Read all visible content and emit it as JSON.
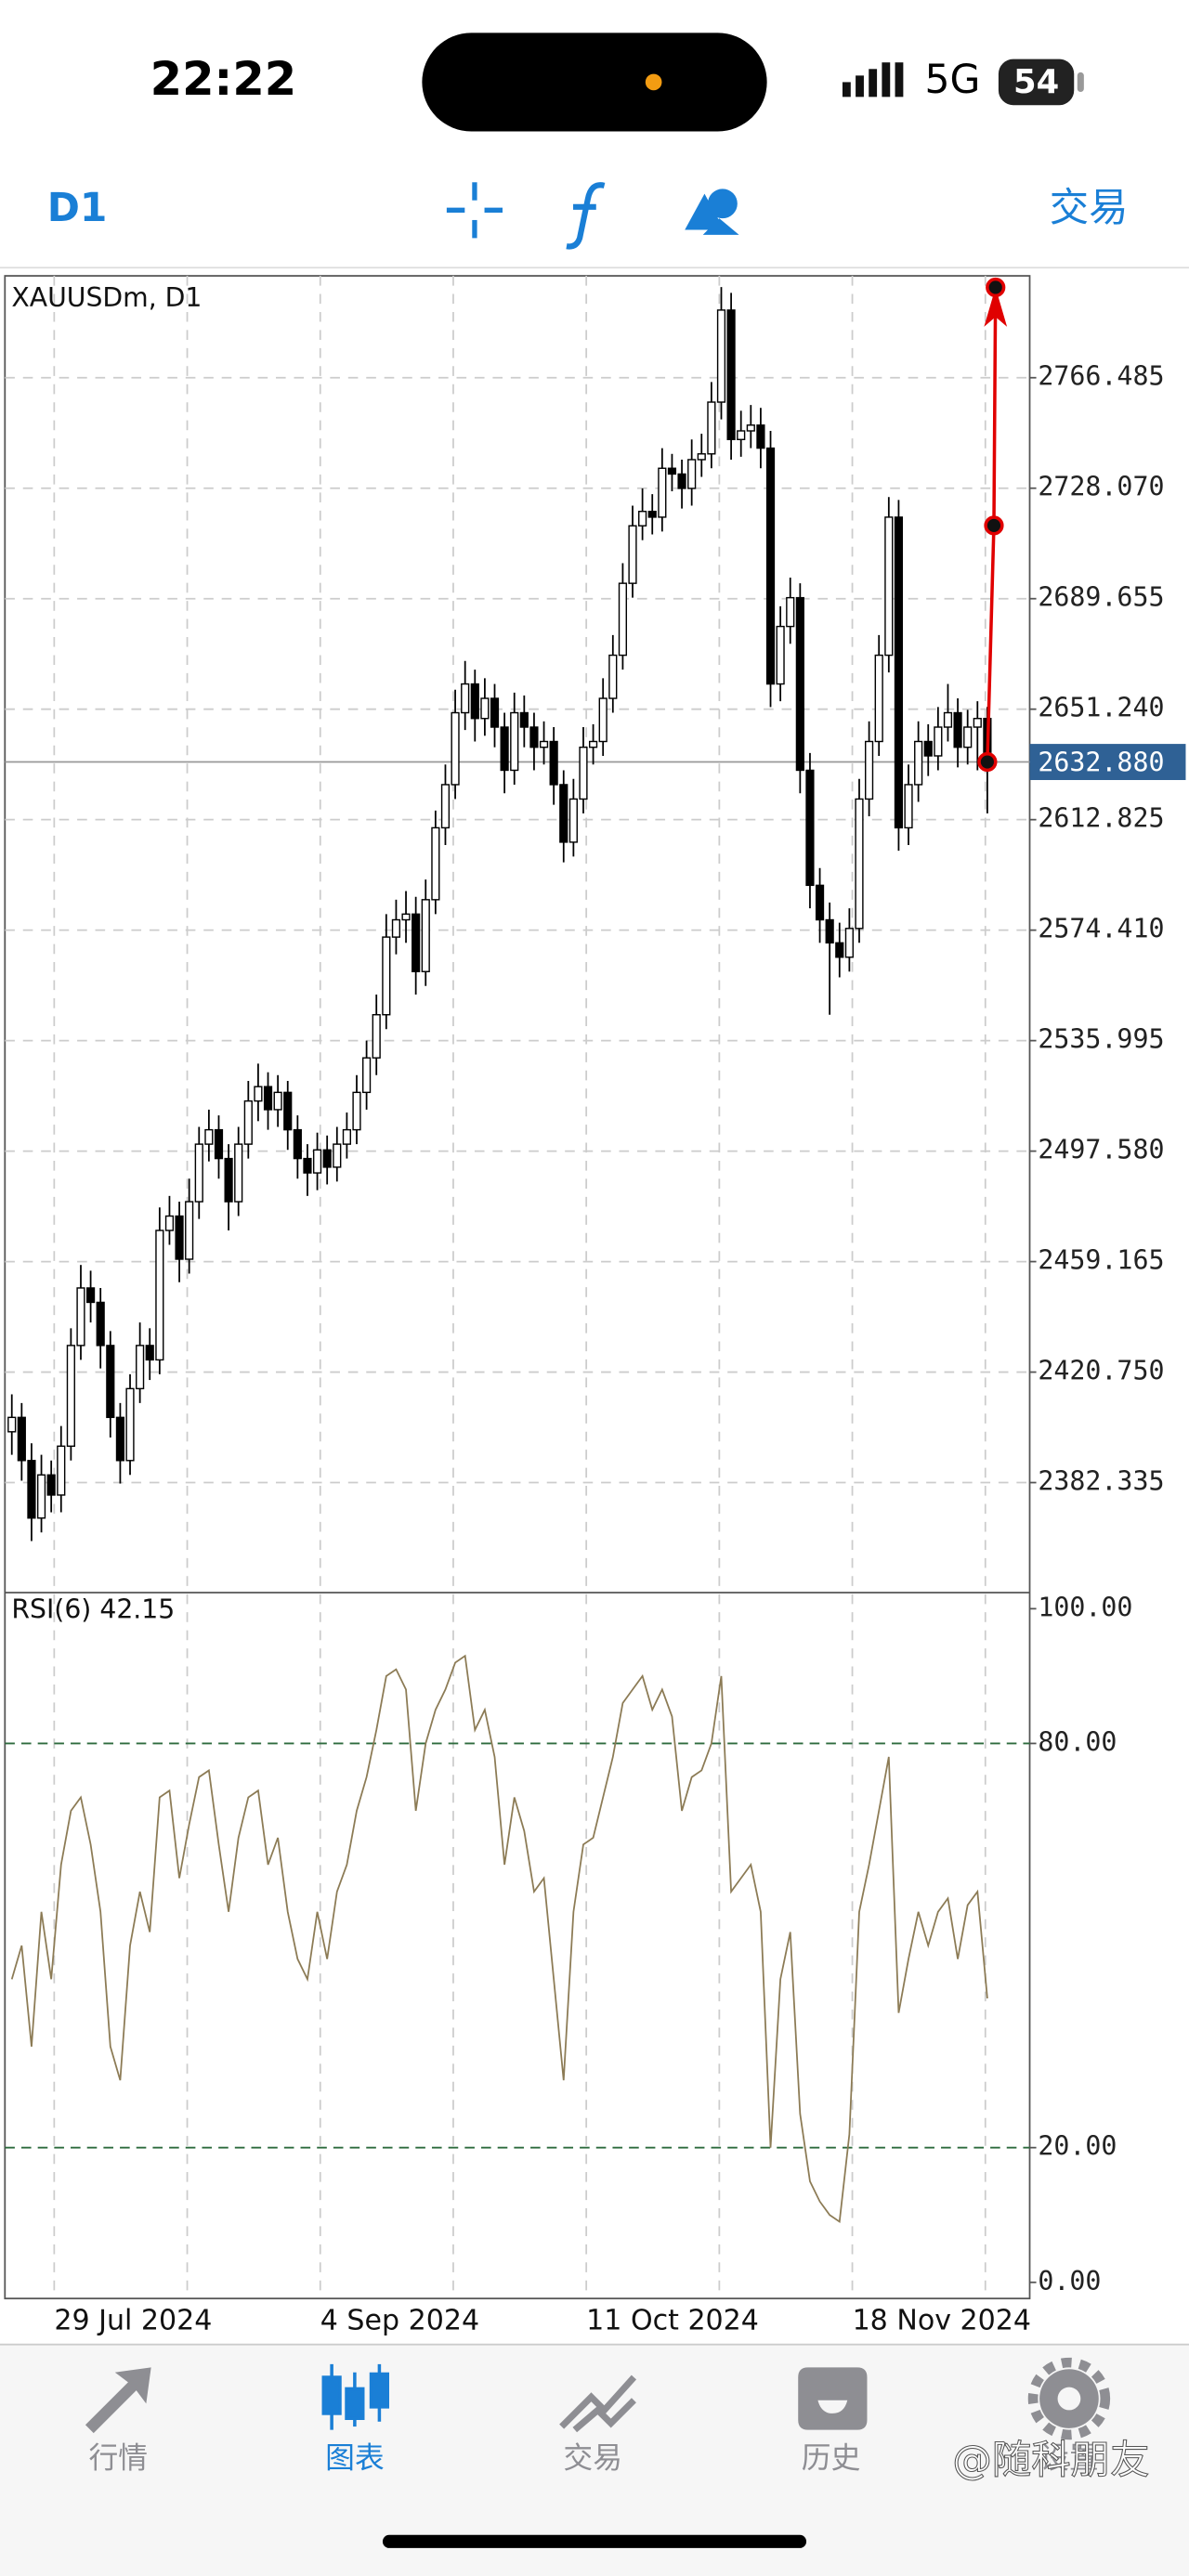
{
  "status_bar": {
    "time": "22:22",
    "network": "5G",
    "battery": "54"
  },
  "toolbar": {
    "timeframe": "D1",
    "trade": "交易"
  },
  "chart_data": {
    "type": "candlestick",
    "title": "XAUUSDm, D1",
    "candles": [
      [
        2400,
        2413,
        2392,
        2405
      ],
      [
        2405,
        2410,
        2383,
        2390
      ],
      [
        2390,
        2396,
        2362,
        2370
      ],
      [
        2370,
        2392,
        2365,
        2385
      ],
      [
        2385,
        2390,
        2372,
        2378
      ],
      [
        2378,
        2402,
        2372,
        2395
      ],
      [
        2395,
        2436,
        2390,
        2430
      ],
      [
        2430,
        2458,
        2425,
        2450
      ],
      [
        2450,
        2456,
        2438,
        2445
      ],
      [
        2445,
        2450,
        2422,
        2430
      ],
      [
        2430,
        2435,
        2398,
        2405
      ],
      [
        2405,
        2410,
        2382,
        2390
      ],
      [
        2390,
        2420,
        2385,
        2415
      ],
      [
        2415,
        2438,
        2410,
        2430
      ],
      [
        2430,
        2436,
        2418,
        2425
      ],
      [
        2425,
        2478,
        2420,
        2470
      ],
      [
        2470,
        2482,
        2465,
        2475
      ],
      [
        2475,
        2480,
        2452,
        2460
      ],
      [
        2460,
        2488,
        2455,
        2480
      ],
      [
        2480,
        2506,
        2474,
        2500
      ],
      [
        2500,
        2512,
        2494,
        2505
      ],
      [
        2505,
        2510,
        2488,
        2495
      ],
      [
        2495,
        2500,
        2470,
        2480
      ],
      [
        2480,
        2506,
        2475,
        2500
      ],
      [
        2500,
        2522,
        2495,
        2515
      ],
      [
        2515,
        2528,
        2508,
        2520
      ],
      [
        2520,
        2525,
        2505,
        2512
      ],
      [
        2512,
        2524,
        2506,
        2518
      ],
      [
        2518,
        2522,
        2498,
        2505
      ],
      [
        2505,
        2510,
        2488,
        2495
      ],
      [
        2495,
        2500,
        2482,
        2490
      ],
      [
        2490,
        2504,
        2484,
        2498
      ],
      [
        2498,
        2503,
        2486,
        2492
      ],
      [
        2492,
        2506,
        2487,
        2500
      ],
      [
        2500,
        2511,
        2495,
        2505
      ],
      [
        2505,
        2524,
        2500,
        2518
      ],
      [
        2518,
        2536,
        2512,
        2530
      ],
      [
        2530,
        2552,
        2524,
        2545
      ],
      [
        2545,
        2580,
        2540,
        2572
      ],
      [
        2572,
        2585,
        2566,
        2578
      ],
      [
        2578,
        2588,
        2570,
        2580
      ],
      [
        2580,
        2586,
        2552,
        2560
      ],
      [
        2560,
        2592,
        2555,
        2585
      ],
      [
        2585,
        2616,
        2580,
        2610
      ],
      [
        2610,
        2632,
        2604,
        2625
      ],
      [
        2625,
        2658,
        2620,
        2650
      ],
      [
        2650,
        2668,
        2644,
        2660
      ],
      [
        2660,
        2665,
        2640,
        2648
      ],
      [
        2648,
        2662,
        2642,
        2655
      ],
      [
        2655,
        2660,
        2638,
        2645
      ],
      [
        2645,
        2650,
        2622,
        2630
      ],
      [
        2630,
        2657,
        2625,
        2650
      ],
      [
        2650,
        2656,
        2638,
        2645
      ],
      [
        2645,
        2650,
        2630,
        2638
      ],
      [
        2638,
        2647,
        2632,
        2640
      ],
      [
        2640,
        2645,
        2618,
        2625
      ],
      [
        2625,
        2630,
        2598,
        2605
      ],
      [
        2605,
        2627,
        2600,
        2620
      ],
      [
        2620,
        2645,
        2615,
        2638
      ],
      [
        2638,
        2646,
        2632,
        2640
      ],
      [
        2640,
        2662,
        2635,
        2655
      ],
      [
        2655,
        2677,
        2650,
        2670
      ],
      [
        2670,
        2702,
        2665,
        2695
      ],
      [
        2695,
        2722,
        2690,
        2715
      ],
      [
        2715,
        2728,
        2710,
        2720
      ],
      [
        2720,
        2726,
        2712,
        2718
      ],
      [
        2718,
        2742,
        2713,
        2735
      ],
      [
        2735,
        2740,
        2727,
        2733
      ],
      [
        2733,
        2738,
        2721,
        2728
      ],
      [
        2728,
        2745,
        2722,
        2738
      ],
      [
        2738,
        2747,
        2732,
        2740
      ],
      [
        2740,
        2765,
        2735,
        2758
      ],
      [
        2758,
        2798,
        2752,
        2790
      ],
      [
        2790,
        2796,
        2738,
        2745
      ],
      [
        2745,
        2755,
        2739,
        2748
      ],
      [
        2748,
        2757,
        2742,
        2750
      ],
      [
        2750,
        2756,
        2735,
        2742
      ],
      [
        2742,
        2748,
        2652,
        2660
      ],
      [
        2660,
        2687,
        2654,
        2680
      ],
      [
        2680,
        2697,
        2674,
        2690
      ],
      [
        2690,
        2695,
        2622,
        2630
      ],
      [
        2630,
        2636,
        2582,
        2590
      ],
      [
        2590,
        2596,
        2570,
        2578
      ],
      [
        2578,
        2584,
        2545,
        2570
      ],
      [
        2570,
        2577,
        2558,
        2565
      ],
      [
        2565,
        2582,
        2560,
        2575
      ],
      [
        2575,
        2627,
        2570,
        2620
      ],
      [
        2620,
        2647,
        2614,
        2640
      ],
      [
        2640,
        2677,
        2635,
        2670
      ],
      [
        2670,
        2725,
        2664,
        2718
      ],
      [
        2718,
        2724,
        2602,
        2610
      ],
      [
        2610,
        2632,
        2604,
        2625
      ],
      [
        2625,
        2647,
        2619,
        2640
      ],
      [
        2640,
        2646,
        2628,
        2635
      ],
      [
        2635,
        2652,
        2630,
        2645
      ],
      [
        2645,
        2660,
        2640,
        2650
      ],
      [
        2650,
        2655,
        2631,
        2638
      ],
      [
        2638,
        2651,
        2632,
        2645
      ],
      [
        2645,
        2654,
        2630,
        2648
      ],
      [
        2648,
        2652,
        2615,
        2632.88
      ]
    ],
    "ylim": [
      2344.1,
      2801.9
    ],
    "yticks": [
      2766.485,
      {
        "value": 2728.07,
        "label": "2728.070"
      },
      2689.655,
      {
        "value": 2651.24,
        "label": "2651.240"
      },
      2612.825,
      {
        "value": 2574.41,
        "label": "2574.410"
      },
      2535.995,
      {
        "value": 2497.58,
        "label": "2497.580"
      },
      2459.165,
      {
        "value": 2420.75,
        "label": "2420.750"
      },
      2382.335
    ],
    "xlim": [
      -0.7,
      103.3
    ],
    "xticks": [
      {
        "value": 4.3,
        "label": "29 Jul 2024"
      },
      {
        "value": 31.3,
        "label": "4 Sep 2024"
      },
      {
        "value": 58.3,
        "label": "11 Oct 2024"
      },
      {
        "value": 85.3,
        "label": "18 Nov 2024"
      }
    ],
    "xgrid": [
      17.8,
      44.8,
      71.8,
      98.8
    ],
    "grid": true,
    "up_color": "#ffffff",
    "down_color": "#000000",
    "last_price": {
      "value": 2632.88,
      "label": "2632.880"
    },
    "arrow": [
      2632.88,
      2715.1,
      2797.9
    ],
    "arrow_color": "#e00000",
    "rsi": {
      "type": "line",
      "name": "RSI(6)",
      "color": "#8c7b55",
      "values": [
        45,
        50,
        35,
        55,
        45,
        62,
        70,
        72,
        65,
        55,
        35,
        30,
        50,
        58,
        52,
        72,
        73,
        60,
        68,
        75,
        76,
        65,
        55,
        66,
        72,
        73,
        62,
        66,
        55,
        48,
        45,
        55,
        48,
        58,
        62,
        70,
        75,
        82,
        90,
        91,
        88,
        70,
        80,
        85,
        88,
        92,
        93,
        82,
        85,
        78,
        62,
        72,
        67,
        58,
        60,
        45,
        30,
        55,
        65,
        66,
        72,
        78,
        86,
        88,
        90,
        85,
        88,
        84,
        70,
        75,
        76,
        80,
        90,
        58,
        60,
        62,
        55,
        20,
        45,
        52,
        25,
        15,
        12,
        10,
        9,
        22,
        55,
        62,
        70,
        78,
        40,
        48,
        55,
        50,
        55,
        57,
        48,
        56,
        58,
        42.15
      ],
      "ylim": [
        -2.4,
        102.4
      ],
      "yticks": [
        {
          "value": 100,
          "label": "100.00"
        },
        {
          "value": 80,
          "label": "80.00"
        },
        {
          "value": 20,
          "label": "20.00"
        },
        {
          "value": 0,
          "label": "0.00"
        }
      ],
      "levels": [
        80,
        20
      ],
      "level_color": "#2e6b3e"
    }
  },
  "tabs": [
    "行情",
    "图表",
    "交易",
    "历史",
    "设置"
  ],
  "active_tab": 1,
  "watermark": "@随科朋友"
}
